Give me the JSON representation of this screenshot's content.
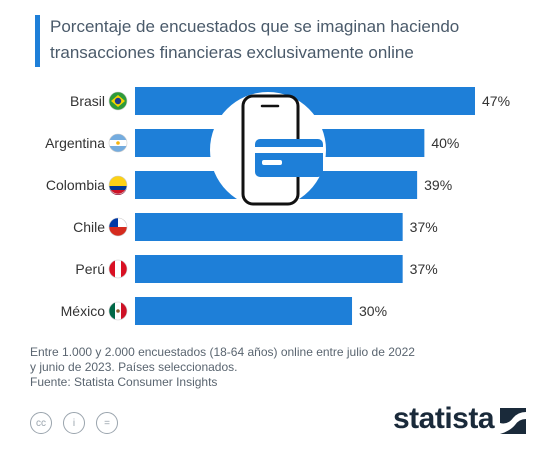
{
  "title": "Porcentaje de encuestados que se imaginan haciendo transacciones financieras exclusivamente online",
  "colors": {
    "bar": "#1e7fd8",
    "accent": "#1e7fd8",
    "text": "#333333"
  },
  "chart_data": {
    "type": "bar",
    "orientation": "horizontal",
    "categories": [
      "Brasil",
      "Argentina",
      "Colombia",
      "Chile",
      "Perú",
      "México"
    ],
    "values": [
      47,
      40,
      39,
      37,
      37,
      30
    ],
    "value_labels": [
      "47%",
      "40%",
      "39%",
      "37%",
      "37%",
      "30%"
    ],
    "unit": "%",
    "xlim": [
      0,
      47
    ],
    "grid": false,
    "legend": "none"
  },
  "flags": [
    "brazil-flag-icon",
    "argentina-flag-icon",
    "colombia-flag-icon",
    "chile-flag-icon",
    "peru-flag-icon",
    "mexico-flag-icon"
  ],
  "illustration": "mobile-payment-card-icon",
  "footnote": {
    "line1": "Entre 1.000 y 2.000 encuestados (18-64 años) online entre julio de 2022",
    "line2": "y junio de 2023. Países seleccionados.",
    "source": "Fuente: Statista Consumer Insights"
  },
  "license_icons": [
    "cc",
    "i",
    "="
  ],
  "brand": "statista"
}
